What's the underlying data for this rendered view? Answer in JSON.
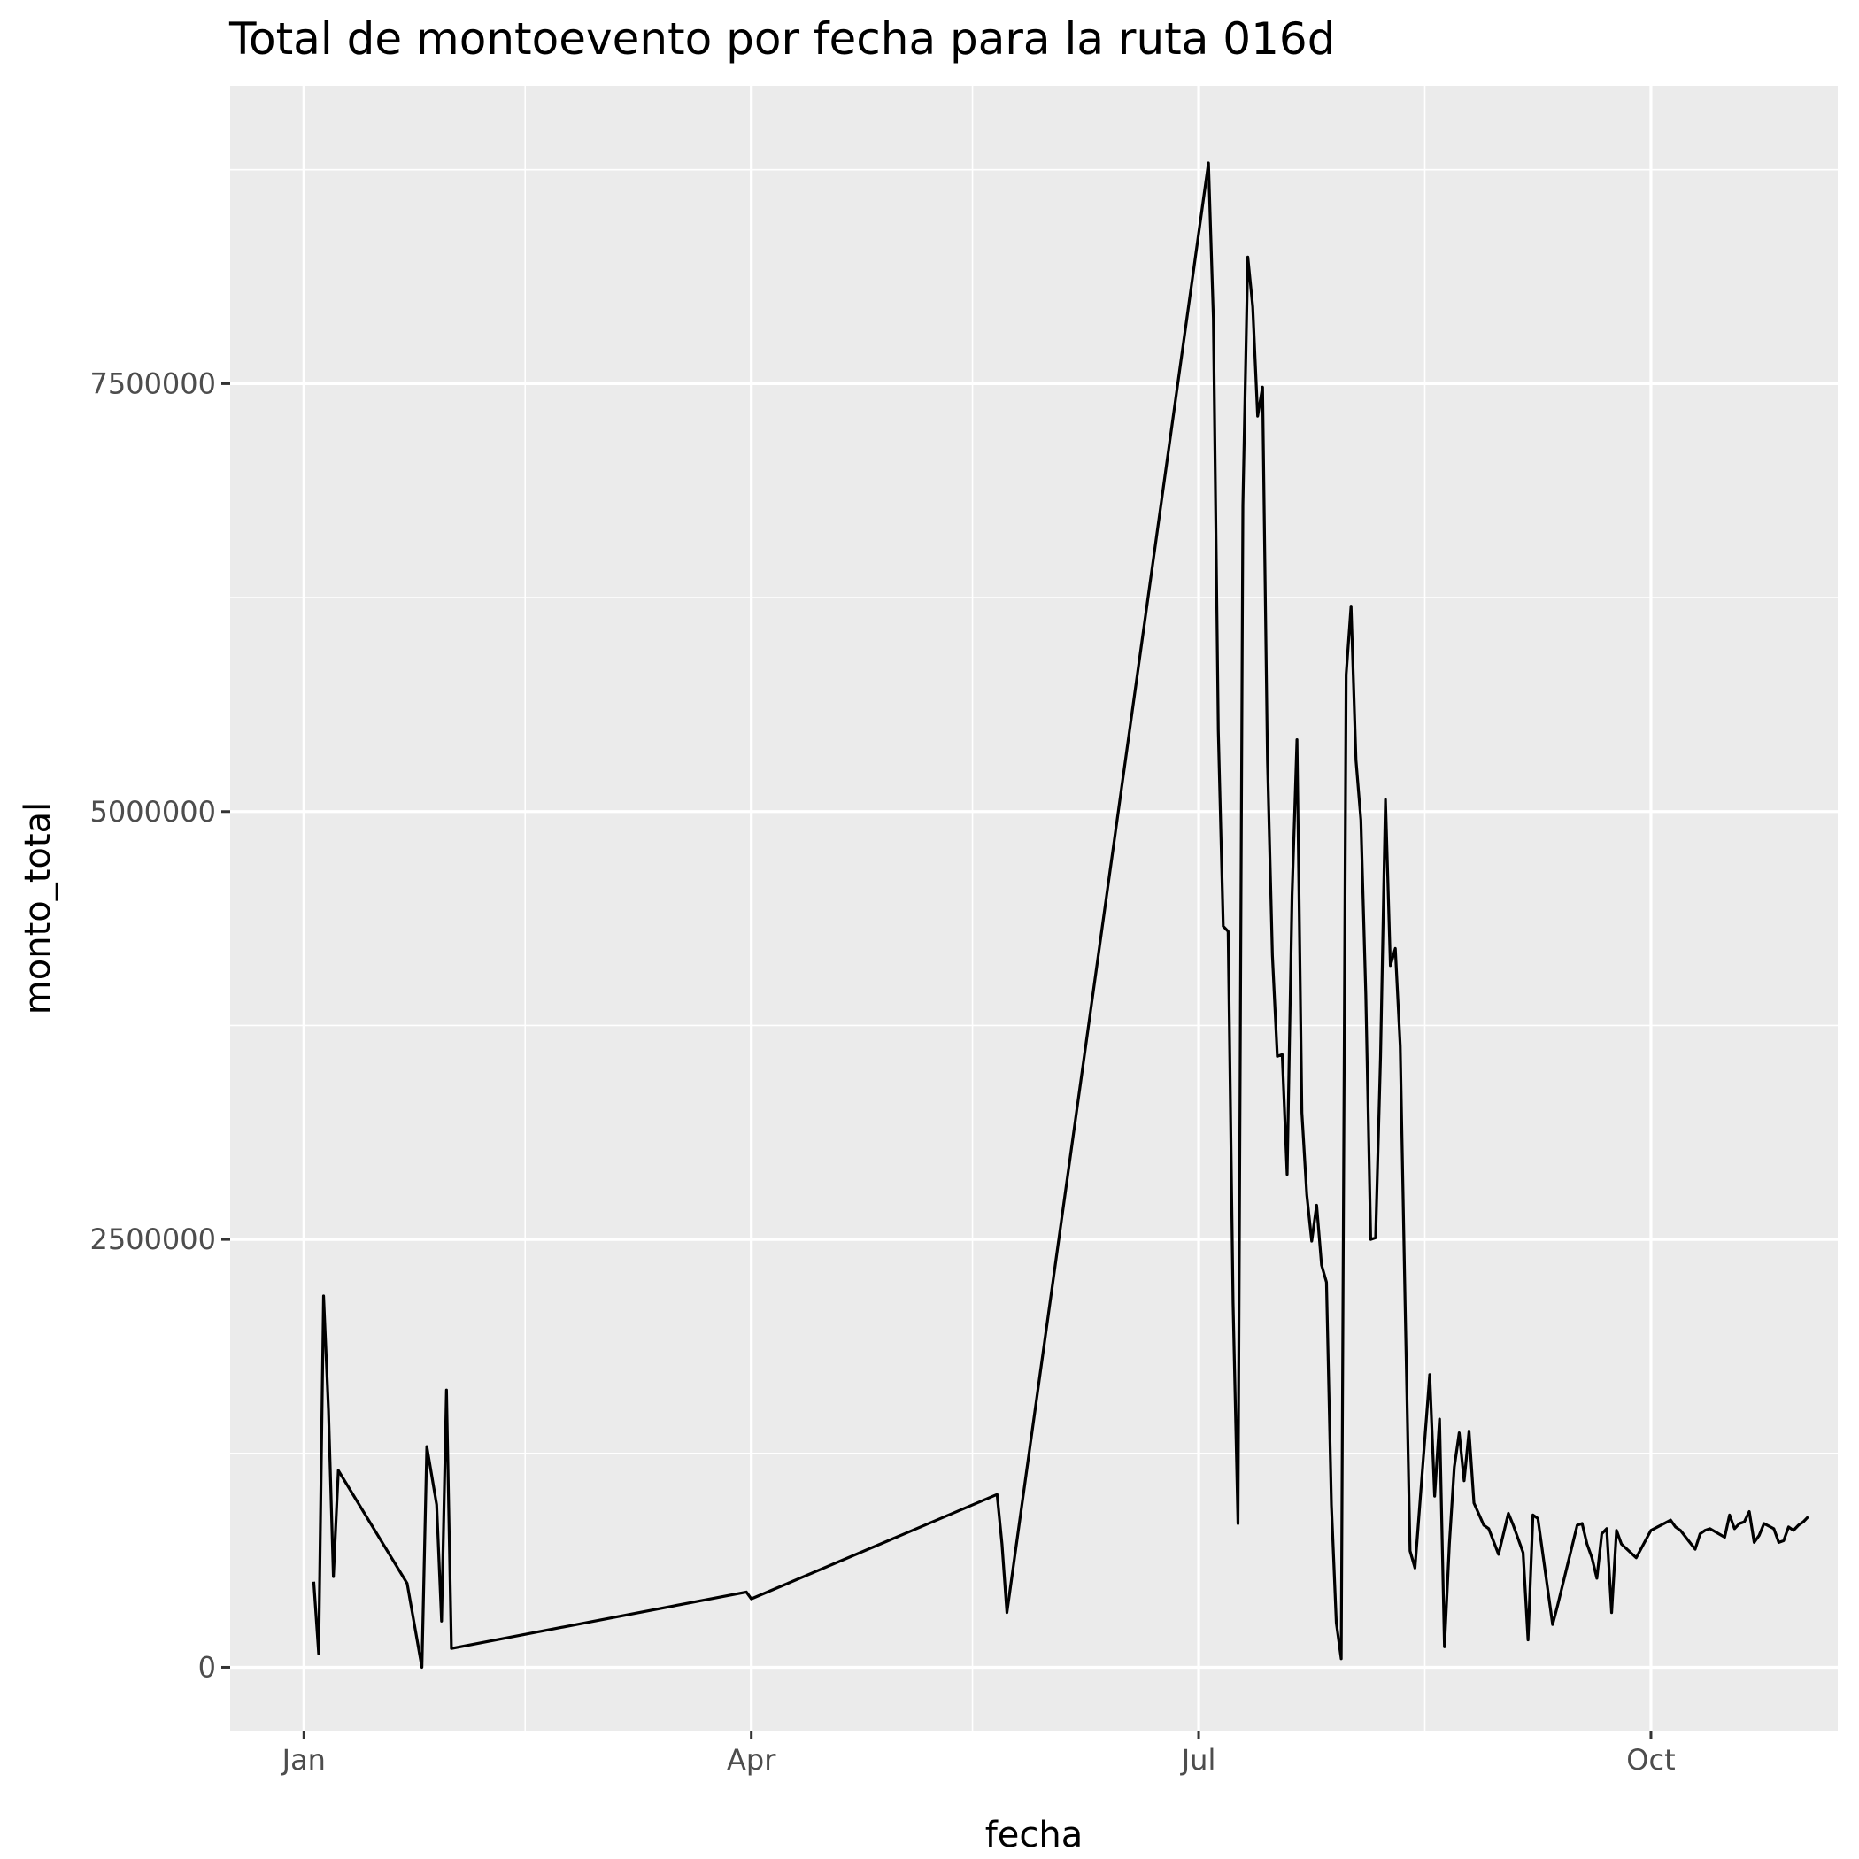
{
  "chart_data": {
    "type": "line",
    "title": "Total de montoevento por fecha para la ruta 016d",
    "xlabel": "fecha",
    "ylabel": "monto_total",
    "x_type": "date",
    "xlim": [
      "2023-12-17",
      "2024-11-08"
    ],
    "ylim": [
      -370000,
      9240000
    ],
    "x_ticks": [
      {
        "date": "2024-01-01",
        "label": "Jan"
      },
      {
        "date": "2024-04-01",
        "label": "Apr"
      },
      {
        "date": "2024-07-01",
        "label": "Jul"
      },
      {
        "date": "2024-10-01",
        "label": "Oct"
      }
    ],
    "x_minor_ticks": [
      "2024-02-15",
      "2024-05-16",
      "2024-08-16"
    ],
    "y_ticks": [
      0,
      2500000,
      5000000,
      7500000
    ],
    "y_tick_labels": [
      "0",
      "2500000",
      "5000000",
      "7500000"
    ],
    "y_minor_ticks": [
      1250000,
      3750000,
      6250000,
      8750000
    ],
    "grid": true,
    "line_color": "#000000",
    "panel_color": "#ebebeb",
    "grid_color": "#ffffff",
    "series": [
      {
        "x": [
          "2024-01-03",
          "2024-01-04",
          "2024-01-05",
          "2024-01-06",
          "2024-01-07",
          "2024-01-08",
          "2024-01-22",
          "2024-01-25",
          "2024-01-26",
          "2024-01-28",
          "2024-01-29",
          "2024-01-30",
          "2024-01-31",
          "2024-03-31",
          "2024-04-01",
          "2024-05-21",
          "2024-05-22",
          "2024-05-23",
          "2024-07-03",
          "2024-07-04",
          "2024-07-05",
          "2024-07-06",
          "2024-07-07",
          "2024-07-08",
          "2024-07-09",
          "2024-07-10",
          "2024-07-11",
          "2024-07-12",
          "2024-07-13",
          "2024-07-14",
          "2024-07-15",
          "2024-07-16",
          "2024-07-17",
          "2024-07-18",
          "2024-07-19",
          "2024-07-20",
          "2024-07-21",
          "2024-07-22",
          "2024-07-23",
          "2024-07-24",
          "2024-07-25",
          "2024-07-26",
          "2024-07-27",
          "2024-07-28",
          "2024-07-29",
          "2024-07-30",
          "2024-07-31",
          "2024-08-01",
          "2024-08-02",
          "2024-08-03",
          "2024-08-04",
          "2024-08-05",
          "2024-08-06",
          "2024-08-07",
          "2024-08-08",
          "2024-08-09",
          "2024-08-10",
          "2024-08-11",
          "2024-08-12",
          "2024-08-13",
          "2024-08-14",
          "2024-08-17",
          "2024-08-18",
          "2024-08-19",
          "2024-08-20",
          "2024-08-21",
          "2024-08-22",
          "2024-08-23",
          "2024-08-24",
          "2024-08-25",
          "2024-08-26",
          "2024-08-28",
          "2024-08-29",
          "2024-08-31",
          "2024-09-02",
          "2024-09-03",
          "2024-09-04",
          "2024-09-05",
          "2024-09-06",
          "2024-09-07",
          "2024-09-08",
          "2024-09-11",
          "2024-09-12",
          "2024-09-16",
          "2024-09-17",
          "2024-09-18",
          "2024-09-19",
          "2024-09-20",
          "2024-09-21",
          "2024-09-22",
          "2024-09-23",
          "2024-09-24",
          "2024-09-25",
          "2024-09-28",
          "2024-10-01",
          "2024-10-05",
          "2024-10-06",
          "2024-10-07",
          "2024-10-10",
          "2024-10-11",
          "2024-10-12",
          "2024-10-13",
          "2024-10-16",
          "2024-10-17",
          "2024-10-18",
          "2024-10-19",
          "2024-10-20",
          "2024-10-21",
          "2024-10-22",
          "2024-10-23",
          "2024-10-24",
          "2024-10-26",
          "2024-10-27",
          "2024-10-28",
          "2024-10-29",
          "2024-10-30",
          "2024-10-31",
          "2024-11-01",
          "2024-11-02"
        ],
        "y": [
          500000,
          80000,
          2170000,
          1500000,
          530000,
          1150000,
          490000,
          0,
          1290000,
          950000,
          270000,
          1620000,
          110000,
          440000,
          400000,
          1010000,
          720000,
          320000,
          8790000,
          7880000,
          5470000,
          4330000,
          4300000,
          2130000,
          840000,
          6790000,
          8240000,
          7950000,
          7310000,
          7480000,
          5300000,
          4160000,
          3570000,
          3580000,
          2880000,
          4510000,
          5420000,
          3240000,
          2760000,
          2490000,
          2700000,
          2350000,
          2250000,
          950000,
          260000,
          50000,
          5800000,
          6200000,
          5300000,
          4950000,
          3930000,
          2500000,
          2510000,
          3570000,
          5070000,
          4100000,
          4200000,
          3630000,
          2120000,
          680000,
          580000,
          1710000,
          1000000,
          1450000,
          120000,
          720000,
          1170000,
          1370000,
          1090000,
          1380000,
          960000,
          830000,
          810000,
          660000,
          900000,
          830000,
          750000,
          670000,
          160000,
          890000,
          870000,
          250000,
          360000,
          830000,
          840000,
          720000,
          640000,
          520000,
          780000,
          810000,
          320000,
          800000,
          720000,
          640000,
          800000,
          860000,
          820000,
          800000,
          690000,
          780000,
          800000,
          810000,
          760000,
          890000,
          810000,
          840000,
          850000,
          910000,
          730000,
          770000,
          840000,
          810000,
          730000,
          740000,
          820000,
          800000,
          830000,
          850000,
          880000
        ]
      }
    ]
  }
}
